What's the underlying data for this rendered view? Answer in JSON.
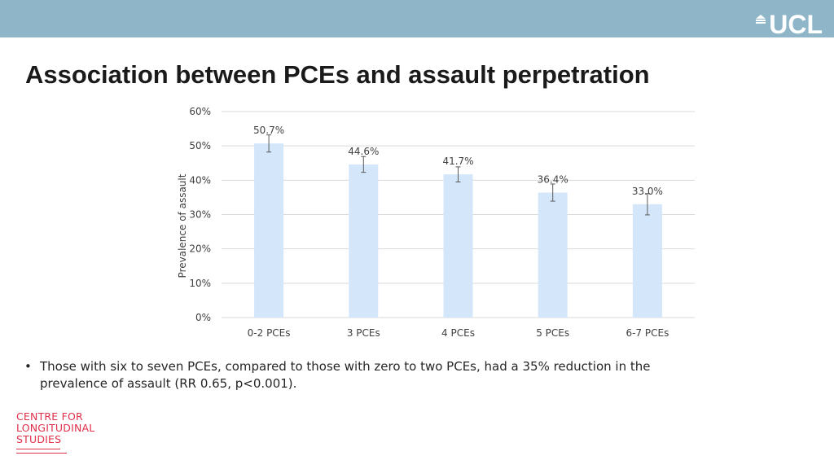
{
  "header": {
    "logo_text": "UCL",
    "banner_color": "#8fb5c9"
  },
  "title": "Association between PCEs and assault perpetration",
  "chart_data": {
    "type": "bar",
    "categories": [
      "0-2 PCEs",
      "3 PCEs",
      "4 PCEs",
      "5 PCEs",
      "6-7 PCEs"
    ],
    "values": [
      50.7,
      44.6,
      41.7,
      36.4,
      33.0
    ],
    "value_labels": [
      "50.7%",
      "44.6%",
      "41.7%",
      "36.4%",
      "33.0%"
    ],
    "error_low": [
      48.2,
      42.3,
      39.5,
      33.9,
      29.9
    ],
    "error_high": [
      53.2,
      46.9,
      43.9,
      38.9,
      36.1
    ],
    "title": "",
    "xlabel": "",
    "ylabel": "Prevalence of assault",
    "ylim": [
      0,
      60
    ],
    "yticks": [
      0,
      10,
      20,
      30,
      40,
      50,
      60
    ],
    "ytick_labels": [
      "0%",
      "10%",
      "20%",
      "30%",
      "40%",
      "50%",
      "60%"
    ],
    "grid": true,
    "legend": "none",
    "bar_color": "#d4e6fa",
    "gridline_color": "#d9d9d9"
  },
  "bullets": [
    "Those with six to seven PCEs, compared to those with zero to two PCEs, had a 35% reduction in the prevalence of assault (RR 0.65, p<0.001)."
  ],
  "footer_logo": {
    "lines": [
      "CENTRE FOR",
      "LONGITUDINAL",
      "STUDIES"
    ],
    "color": "#e0304a"
  }
}
